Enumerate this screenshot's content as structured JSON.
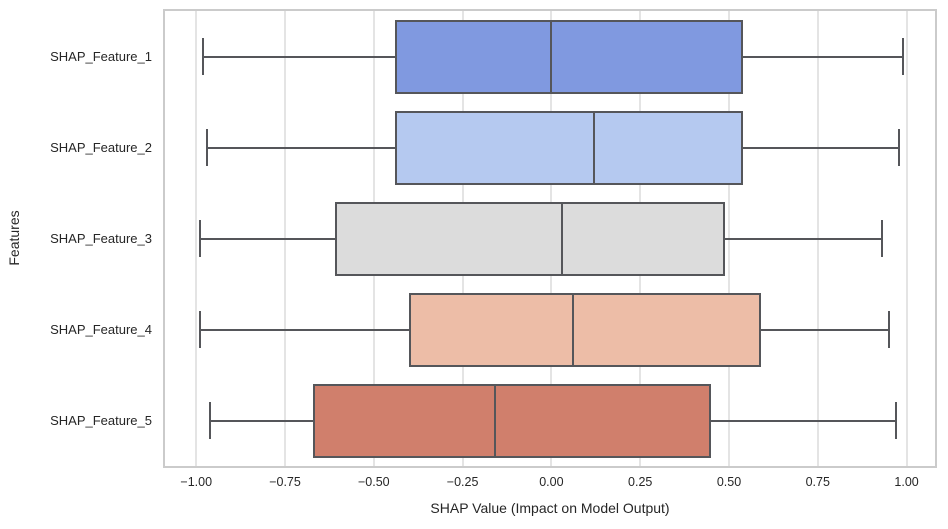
{
  "chart_data": {
    "type": "boxplot",
    "orientation": "horizontal",
    "title": "",
    "xlabel": "SHAP Value (Impact on Model Output)",
    "ylabel": "Features",
    "xlim": [
      -1.088,
      1.08
    ],
    "grid": true,
    "legend": "none",
    "xticks": [
      -1.0,
      -0.75,
      -0.5,
      -0.25,
      0.0,
      0.25,
      0.5,
      0.75,
      1.0
    ],
    "xtick_labels": [
      "−1.00",
      "−0.75",
      "−0.50",
      "−0.25",
      "0.00",
      "0.25",
      "0.50",
      "0.75",
      "1.00"
    ],
    "categories": [
      "SHAP_Feature_1",
      "SHAP_Feature_2",
      "SHAP_Feature_3",
      "SHAP_Feature_4",
      "SHAP_Feature_5"
    ],
    "series": [
      {
        "label": "SHAP_Feature_1",
        "whisker_low": -0.98,
        "q1": -0.44,
        "median": 0.0,
        "q3": 0.54,
        "whisker_high": 0.99,
        "color": "#8099e0"
      },
      {
        "label": "SHAP_Feature_2",
        "whisker_low": -0.97,
        "q1": -0.44,
        "median": 0.12,
        "q3": 0.54,
        "whisker_high": 0.98,
        "color": "#b5c9f0"
      },
      {
        "label": "SHAP_Feature_3",
        "whisker_low": -0.99,
        "q1": -0.61,
        "median": 0.03,
        "q3": 0.49,
        "whisker_high": 0.93,
        "color": "#dcdcdc"
      },
      {
        "label": "SHAP_Feature_4",
        "whisker_low": -0.99,
        "q1": -0.4,
        "median": 0.06,
        "q3": 0.59,
        "whisker_high": 0.95,
        "color": "#edbda7"
      },
      {
        "label": "SHAP_Feature_5",
        "whisker_low": -0.96,
        "q1": -0.67,
        "median": -0.16,
        "q3": 0.45,
        "whisker_high": 0.97,
        "color": "#d07f6c"
      }
    ],
    "colors": {
      "box_edge": "#55565a",
      "grid_line": "#e4e4e4",
      "plot_frame": "#cbcbcb",
      "text": "#262626",
      "background": "#ffffff"
    }
  }
}
